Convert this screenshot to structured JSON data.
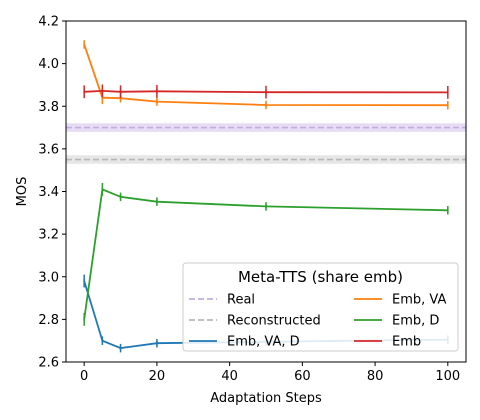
{
  "chart_data": {
    "type": "line",
    "title": "",
    "xlabel": "Adaptation Steps",
    "ylabel": "MOS",
    "xlim": [
      -5,
      105
    ],
    "ylim": [
      2.6,
      4.2
    ],
    "x_ticks": [
      0,
      20,
      40,
      60,
      80,
      100
    ],
    "y_ticks": [
      2.6,
      2.8,
      3.0,
      3.2,
      3.4,
      3.6,
      3.8,
      4.0,
      4.2
    ],
    "x_tick_labels": [
      "0",
      "20",
      "40",
      "60",
      "80",
      "100"
    ],
    "y_tick_labels": [
      "2.6",
      "2.8",
      "3.0",
      "3.2",
      "3.4",
      "3.6",
      "3.8",
      "4.0",
      "4.2"
    ],
    "grid": false,
    "legend_title": "Meta-TTS (share emb)",
    "legend_position": "lower-right",
    "reference_lines": [
      {
        "name": "Real",
        "value": 3.7,
        "band": [
          3.68,
          3.72
        ],
        "color": "#c3aee0",
        "band_color": "#e7dcf3"
      },
      {
        "name": "Reconstructed",
        "value": 3.55,
        "band": [
          3.53,
          3.57
        ],
        "color": "#b8b8b8",
        "band_color": "#e6e6e6"
      }
    ],
    "x": [
      0,
      5,
      10,
      20,
      50,
      100
    ],
    "series": [
      {
        "name": "Emb, VA, D",
        "color": "#1f77b4",
        "values": [
          2.98,
          2.7,
          2.665,
          2.688,
          2.695,
          2.705
        ],
        "err": [
          0.03,
          0.02,
          0.02,
          0.02,
          0.02,
          0.02
        ]
      },
      {
        "name": "Emb, VA",
        "color": "#ff7f0e",
        "values": [
          4.09,
          3.84,
          3.838,
          3.822,
          3.806,
          3.805
        ],
        "err": [
          0.02,
          0.03,
          0.02,
          0.02,
          0.02,
          0.02
        ]
      },
      {
        "name": "Emb, D",
        "color": "#2ca02c",
        "values": [
          2.8,
          3.41,
          3.375,
          3.352,
          3.33,
          3.312
        ],
        "err": [
          0.03,
          0.03,
          0.02,
          0.02,
          0.02,
          0.02
        ]
      },
      {
        "name": "Emb",
        "color": "#d62728",
        "values": [
          3.868,
          3.872,
          3.868,
          3.87,
          3.866,
          3.865
        ],
        "err": [
          0.03,
          0.03,
          0.03,
          0.03,
          0.03,
          0.03
        ]
      }
    ]
  }
}
